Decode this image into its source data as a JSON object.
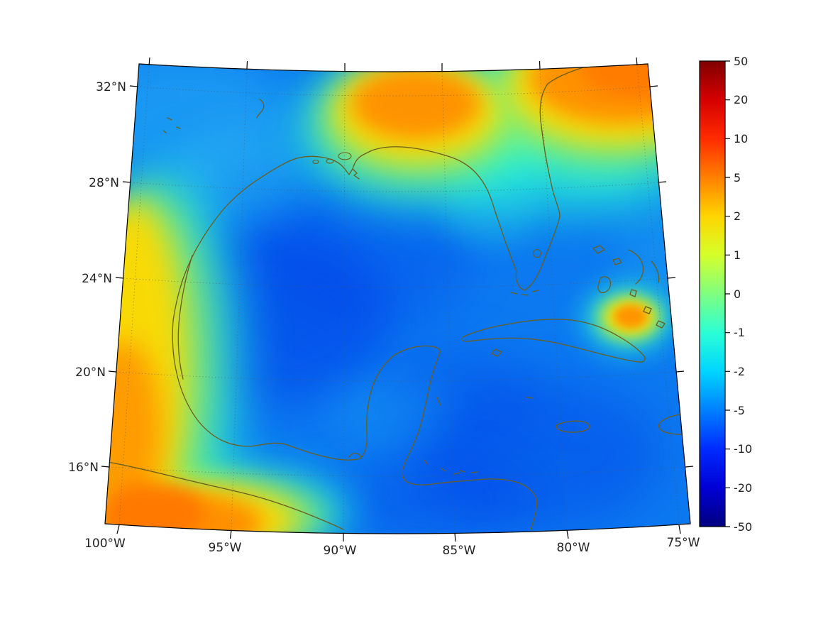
{
  "figure": {
    "type": "geographic filled-contour plot with colorbar",
    "background": "#ffffff",
    "region": "Gulf of Mexico, Florida, Cuba, western Caribbean"
  },
  "map": {
    "x_tick_labels": [
      "100°W",
      "95°W",
      "90°W",
      "85°W",
      "80°W",
      "75°W"
    ],
    "y_tick_labels": [
      "32°N",
      "28°N",
      "24°N",
      "20°N",
      "16°N"
    ],
    "grid": "dotted graticule, 5° longitude by 4° latitude",
    "coastline_color": "#6b5d20",
    "projection": "conic (trapezoidal boundary, meridians converge upward)"
  },
  "colorbar": {
    "tick_labels": [
      "50",
      "20",
      "10",
      "5",
      "2",
      "1",
      "0",
      "-1",
      "-2",
      "-5",
      "-10",
      "-20",
      "-50"
    ],
    "tick_values": [
      50,
      20,
      10,
      5,
      2,
      1,
      0,
      -1,
      -2,
      -5,
      -10,
      -20,
      -50
    ],
    "colors_top_to_bottom": [
      "#800000",
      "#d50000",
      "#ff2b00",
      "#ff8000",
      "#ffd500",
      "#d5ff2b",
      "#80ff80",
      "#2bffd5",
      "#00d5ff",
      "#0080ff",
      "#002bff",
      "#0000d5",
      "#000080"
    ],
    "colormap": "jet",
    "scale": "nonlinear symmetric (log-like tick spacing)",
    "position": "right"
  },
  "chart_data": {
    "type": "heatmap",
    "title": "",
    "xlabel": "",
    "ylabel": "",
    "x_ticks": [
      "100°W",
      "95°W",
      "90°W",
      "85°W",
      "80°W",
      "75°W"
    ],
    "y_ticks": [
      "16°N",
      "20°N",
      "24°N",
      "28°N",
      "32°N"
    ],
    "lon_range_deg_west": [
      101,
      74.5
    ],
    "lat_range_deg_north": [
      14.5,
      33.5
    ],
    "value_range": [
      -50,
      50
    ],
    "colorbar_ticks": [
      50,
      20,
      10,
      5,
      2,
      1,
      0,
      -1,
      -2,
      -5,
      -10,
      -20,
      -50
    ],
    "grid": true,
    "legend_position": "right colorbar",
    "features": [
      {
        "region": "open Gulf of Mexico interior",
        "approx_value": -8
      },
      {
        "region": "Caribbean sea south of Cuba",
        "approx_value": -8
      },
      {
        "region": "narrow warm band along Mexican coast (97-100°W, 17-26°N)",
        "approx_value": 1.5
      },
      {
        "region": "southwest corner near southern Mexico/Guatemala coast (~16°N 97°W)",
        "approx_value": 5
      },
      {
        "region": "northern Gulf shelf near Louisiana-Mississippi-Alabama (~29-31°N 85-91°W)",
        "approx_value": 4
      },
      {
        "region": "northeast corner over Georgia / Atlantic (~31-33°N 75-81°W)",
        "approx_value": 5
      },
      {
        "region": "small warm spot north of eastern Cuba (~23°N 77°W)",
        "approx_value": 4
      },
      {
        "region": "green-cyan transition fringes surrounding all warm regions",
        "approx_value": 0
      },
      {
        "region": "inland Texas, upper-left corner",
        "approx_value": -3
      }
    ]
  }
}
